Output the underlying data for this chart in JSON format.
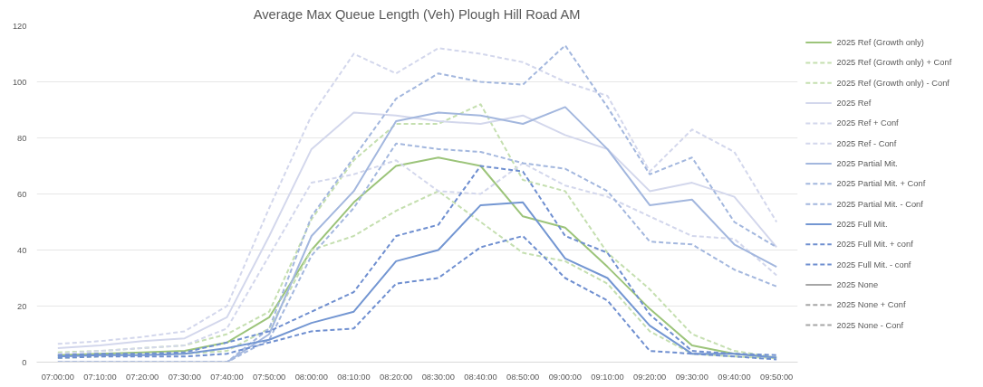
{
  "chart_data": {
    "type": "line",
    "title": "Average Max Queue Length (Veh) Plough Hill Road AM",
    "categories": [
      "07:00:00",
      "07:10:00",
      "07:20:00",
      "07:30:00",
      "07:40:00",
      "07:50:00",
      "08:00:00",
      "08:10:00",
      "08:20:00",
      "08:30:00",
      "08:40:00",
      "08:50:00",
      "09:00:00",
      "09:10:00",
      "09:20:00",
      "09:30:00",
      "09:40:00",
      "09:50:00"
    ],
    "ylim": [
      0,
      120
    ],
    "yticks": [
      0,
      20,
      40,
      60,
      80,
      100,
      120
    ],
    "grid": "y",
    "legend": "right",
    "marker": "none",
    "series": [
      {
        "name": "2025 Ref (Growth only)",
        "color": "#9cc47a",
        "line_style": "solid",
        "values": [
          2.5,
          3,
          3.5,
          4,
          7,
          16,
          40,
          57,
          70,
          73,
          70,
          52,
          48,
          34,
          19,
          6,
          3,
          1.6
        ]
      },
      {
        "name": "2025 Ref (Growth only) + Conf",
        "color": "#c5dfb0",
        "line_style": "dashed",
        "values": [
          3.5,
          4,
          5,
          6,
          10,
          18,
          51,
          72,
          85,
          85,
          92,
          65,
          61,
          39,
          26,
          10,
          4,
          1.6
        ]
      },
      {
        "name": "2025 Ref (Growth only) - Conf",
        "color": "#c5dfb0",
        "line_style": "dashed",
        "values": [
          1.5,
          2,
          2.5,
          3,
          4,
          12,
          40,
          45,
          54,
          61,
          50,
          39,
          36,
          28,
          11,
          3,
          2,
          1.4
        ]
      },
      {
        "name": "2025 Ref",
        "color": "#d3d7ec",
        "line_style": "solid",
        "values": [
          5,
          6,
          7.5,
          8.5,
          16,
          45,
          76,
          89,
          88,
          86,
          85,
          88,
          81,
          76,
          61,
          64,
          59,
          41
        ]
      },
      {
        "name": "2025 Ref + Conf",
        "color": "#d3d7ec",
        "line_style": "dashed",
        "values": [
          6.5,
          7.5,
          9,
          11,
          20,
          55,
          88,
          110,
          103,
          112,
          110,
          107,
          100,
          95,
          68,
          83,
          75,
          50
        ]
      },
      {
        "name": "2025 Ref - Conf",
        "color": "#d3d7ec",
        "line_style": "dashed",
        "values": [
          3,
          4,
          5,
          6,
          12,
          38,
          64,
          67,
          72,
          61,
          60,
          71,
          63,
          59,
          52,
          45,
          44,
          31
        ]
      },
      {
        "name": "2025 Partial Mit.",
        "color": "#a3b7de",
        "line_style": "solid",
        "values": [
          0,
          0,
          0,
          0,
          0,
          10,
          45,
          61,
          86,
          89,
          88,
          85,
          91,
          76,
          56,
          58,
          42,
          34
        ]
      },
      {
        "name": "2025 Partial Mit. + Conf",
        "color": "#a3b7de",
        "line_style": "dashed",
        "values": [
          0,
          0,
          0,
          0,
          0,
          12,
          52,
          73,
          94,
          103,
          100,
          99,
          113,
          91,
          67,
          73,
          50,
          41
        ]
      },
      {
        "name": "2025 Partial Mit. - Conf",
        "color": "#a3b7de",
        "line_style": "dashed",
        "values": [
          0,
          0,
          0,
          0,
          0,
          8,
          38,
          55,
          78,
          76,
          75,
          71,
          69,
          61,
          43,
          42,
          33,
          27
        ]
      },
      {
        "name": "2025 Full Mit.",
        "color": "#7396d2",
        "line_style": "solid",
        "values": [
          2,
          2.5,
          2.5,
          3,
          5,
          8,
          14,
          18,
          36,
          40,
          56,
          57,
          37,
          30,
          13,
          3,
          3,
          1.6
        ]
      },
      {
        "name": "2025 Full Mit. + conf",
        "color": "#6f8fd0",
        "line_style": "dashed",
        "values": [
          2.5,
          3,
          3,
          3.5,
          7,
          11,
          18,
          25,
          45,
          49,
          70,
          68,
          45,
          39,
          17,
          4,
          3,
          2.5
        ]
      },
      {
        "name": "2025 Full Mit. - conf",
        "color": "#6f8fd0",
        "line_style": "dashed",
        "values": [
          1.5,
          2,
          2,
          2,
          3,
          7,
          11,
          12,
          28,
          30,
          41,
          45,
          30,
          22,
          4,
          3,
          2,
          1
        ]
      },
      {
        "name": "2025 None",
        "color": "#a6a6a6",
        "line_style": "solid",
        "values": [
          null,
          null,
          null,
          null,
          null,
          null,
          null,
          null,
          null,
          null,
          null,
          null,
          null,
          null,
          null,
          null,
          null,
          null
        ]
      },
      {
        "name": "2025 None + Conf",
        "color": "#a6a6a6",
        "line_style": "dashed",
        "values": [
          null,
          null,
          null,
          null,
          null,
          null,
          null,
          null,
          null,
          null,
          null,
          null,
          null,
          null,
          null,
          null,
          null,
          null
        ]
      },
      {
        "name": "2025 None - Conf",
        "color": "#a6a6a6",
        "line_style": "dashed",
        "values": [
          null,
          null,
          null,
          null,
          null,
          null,
          null,
          null,
          null,
          null,
          null,
          null,
          null,
          null,
          null,
          null,
          null,
          null
        ]
      }
    ]
  }
}
